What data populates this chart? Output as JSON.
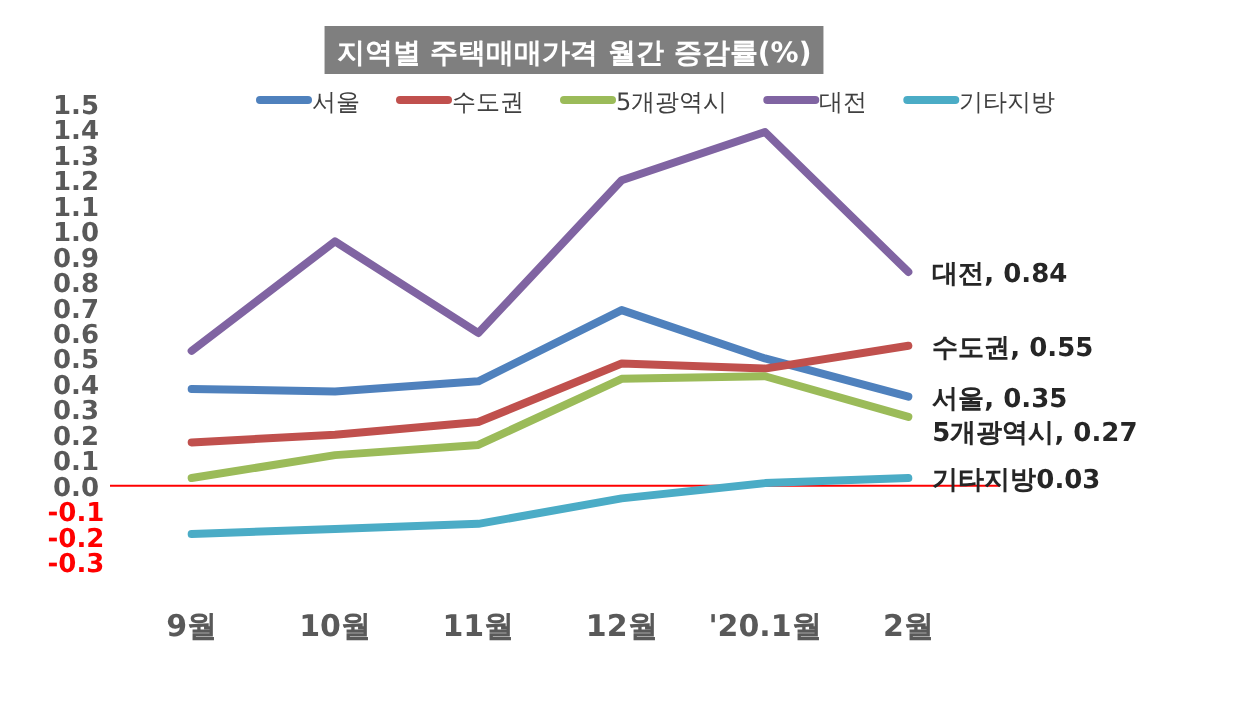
{
  "chart_data": {
    "type": "line",
    "title": "지역별 주택매매가격 월간 증감률(%)",
    "categories": [
      "9월",
      "10월",
      "11월",
      "12월",
      "'20.1월",
      "2월"
    ],
    "series": [
      {
        "name": "서울",
        "color": "#4f81bd",
        "values": [
          0.38,
          0.37,
          0.41,
          0.69,
          0.5,
          0.35
        ],
        "value_labels": [
          null,
          null,
          null,
          null,
          null,
          "서울, 0.35"
        ]
      },
      {
        "name": "수도권",
        "color": "#c0504d",
        "values": [
          0.17,
          0.2,
          0.25,
          0.48,
          0.46,
          0.55
        ],
        "value_labels": [
          null,
          null,
          null,
          null,
          null,
          "수도권, 0.55"
        ]
      },
      {
        "name": "5개광역시",
        "color": "#9bbb59",
        "values": [
          0.03,
          0.12,
          0.16,
          0.42,
          0.43,
          0.27
        ],
        "value_labels": [
          null,
          null,
          null,
          null,
          null,
          "5개광역시, 0.27"
        ]
      },
      {
        "name": "대전",
        "color": "#8064a2",
        "values": [
          0.53,
          0.96,
          0.6,
          1.2,
          1.39,
          0.84
        ],
        "value_labels": [
          null,
          null,
          null,
          null,
          null,
          "대전, 0.84"
        ]
      },
      {
        "name": "기타지방",
        "color": "#4bacc6",
        "values": [
          -0.19,
          -0.17,
          -0.15,
          -0.05,
          0.01,
          0.03
        ],
        "value_labels": [
          null,
          null,
          null,
          null,
          null,
          "기타지방0.03"
        ]
      }
    ],
    "ylim": [
      -0.3,
      1.5
    ],
    "yticks": [
      {
        "value": -0.3,
        "label": "-0.3"
      },
      {
        "value": -0.2,
        "label": "-0.2"
      },
      {
        "value": -0.1,
        "label": "-0.1"
      },
      {
        "value": 0,
        "label": "0.0"
      },
      {
        "value": 0.1,
        "label": "0.1"
      },
      {
        "value": 0.2,
        "label": "0.2"
      },
      {
        "value": 0.3,
        "label": "0.3"
      },
      {
        "value": 0.4,
        "label": "0.4"
      },
      {
        "value": 0.5,
        "label": "0.5"
      },
      {
        "value": 0.6,
        "label": "0.6"
      },
      {
        "value": 0.7,
        "label": "0.7"
      },
      {
        "value": 0.8,
        "label": "0.8"
      },
      {
        "value": 0.9,
        "label": "0.9"
      },
      {
        "value": 1,
        "label": "1.0"
      },
      {
        "value": 1.1,
        "label": "1.1"
      },
      {
        "value": 1.2,
        "label": "1.2"
      },
      {
        "value": 1.3,
        "label": "1.3"
      },
      {
        "value": 1.4,
        "label": "1.4"
      },
      {
        "value": 1.5,
        "label": "1.5"
      }
    ],
    "ref_lines": [
      {
        "axis": "y",
        "value": 0,
        "color": "#ff0000"
      }
    ],
    "grid": false,
    "legend": "top",
    "marker": "none",
    "line_style": "solid"
  }
}
